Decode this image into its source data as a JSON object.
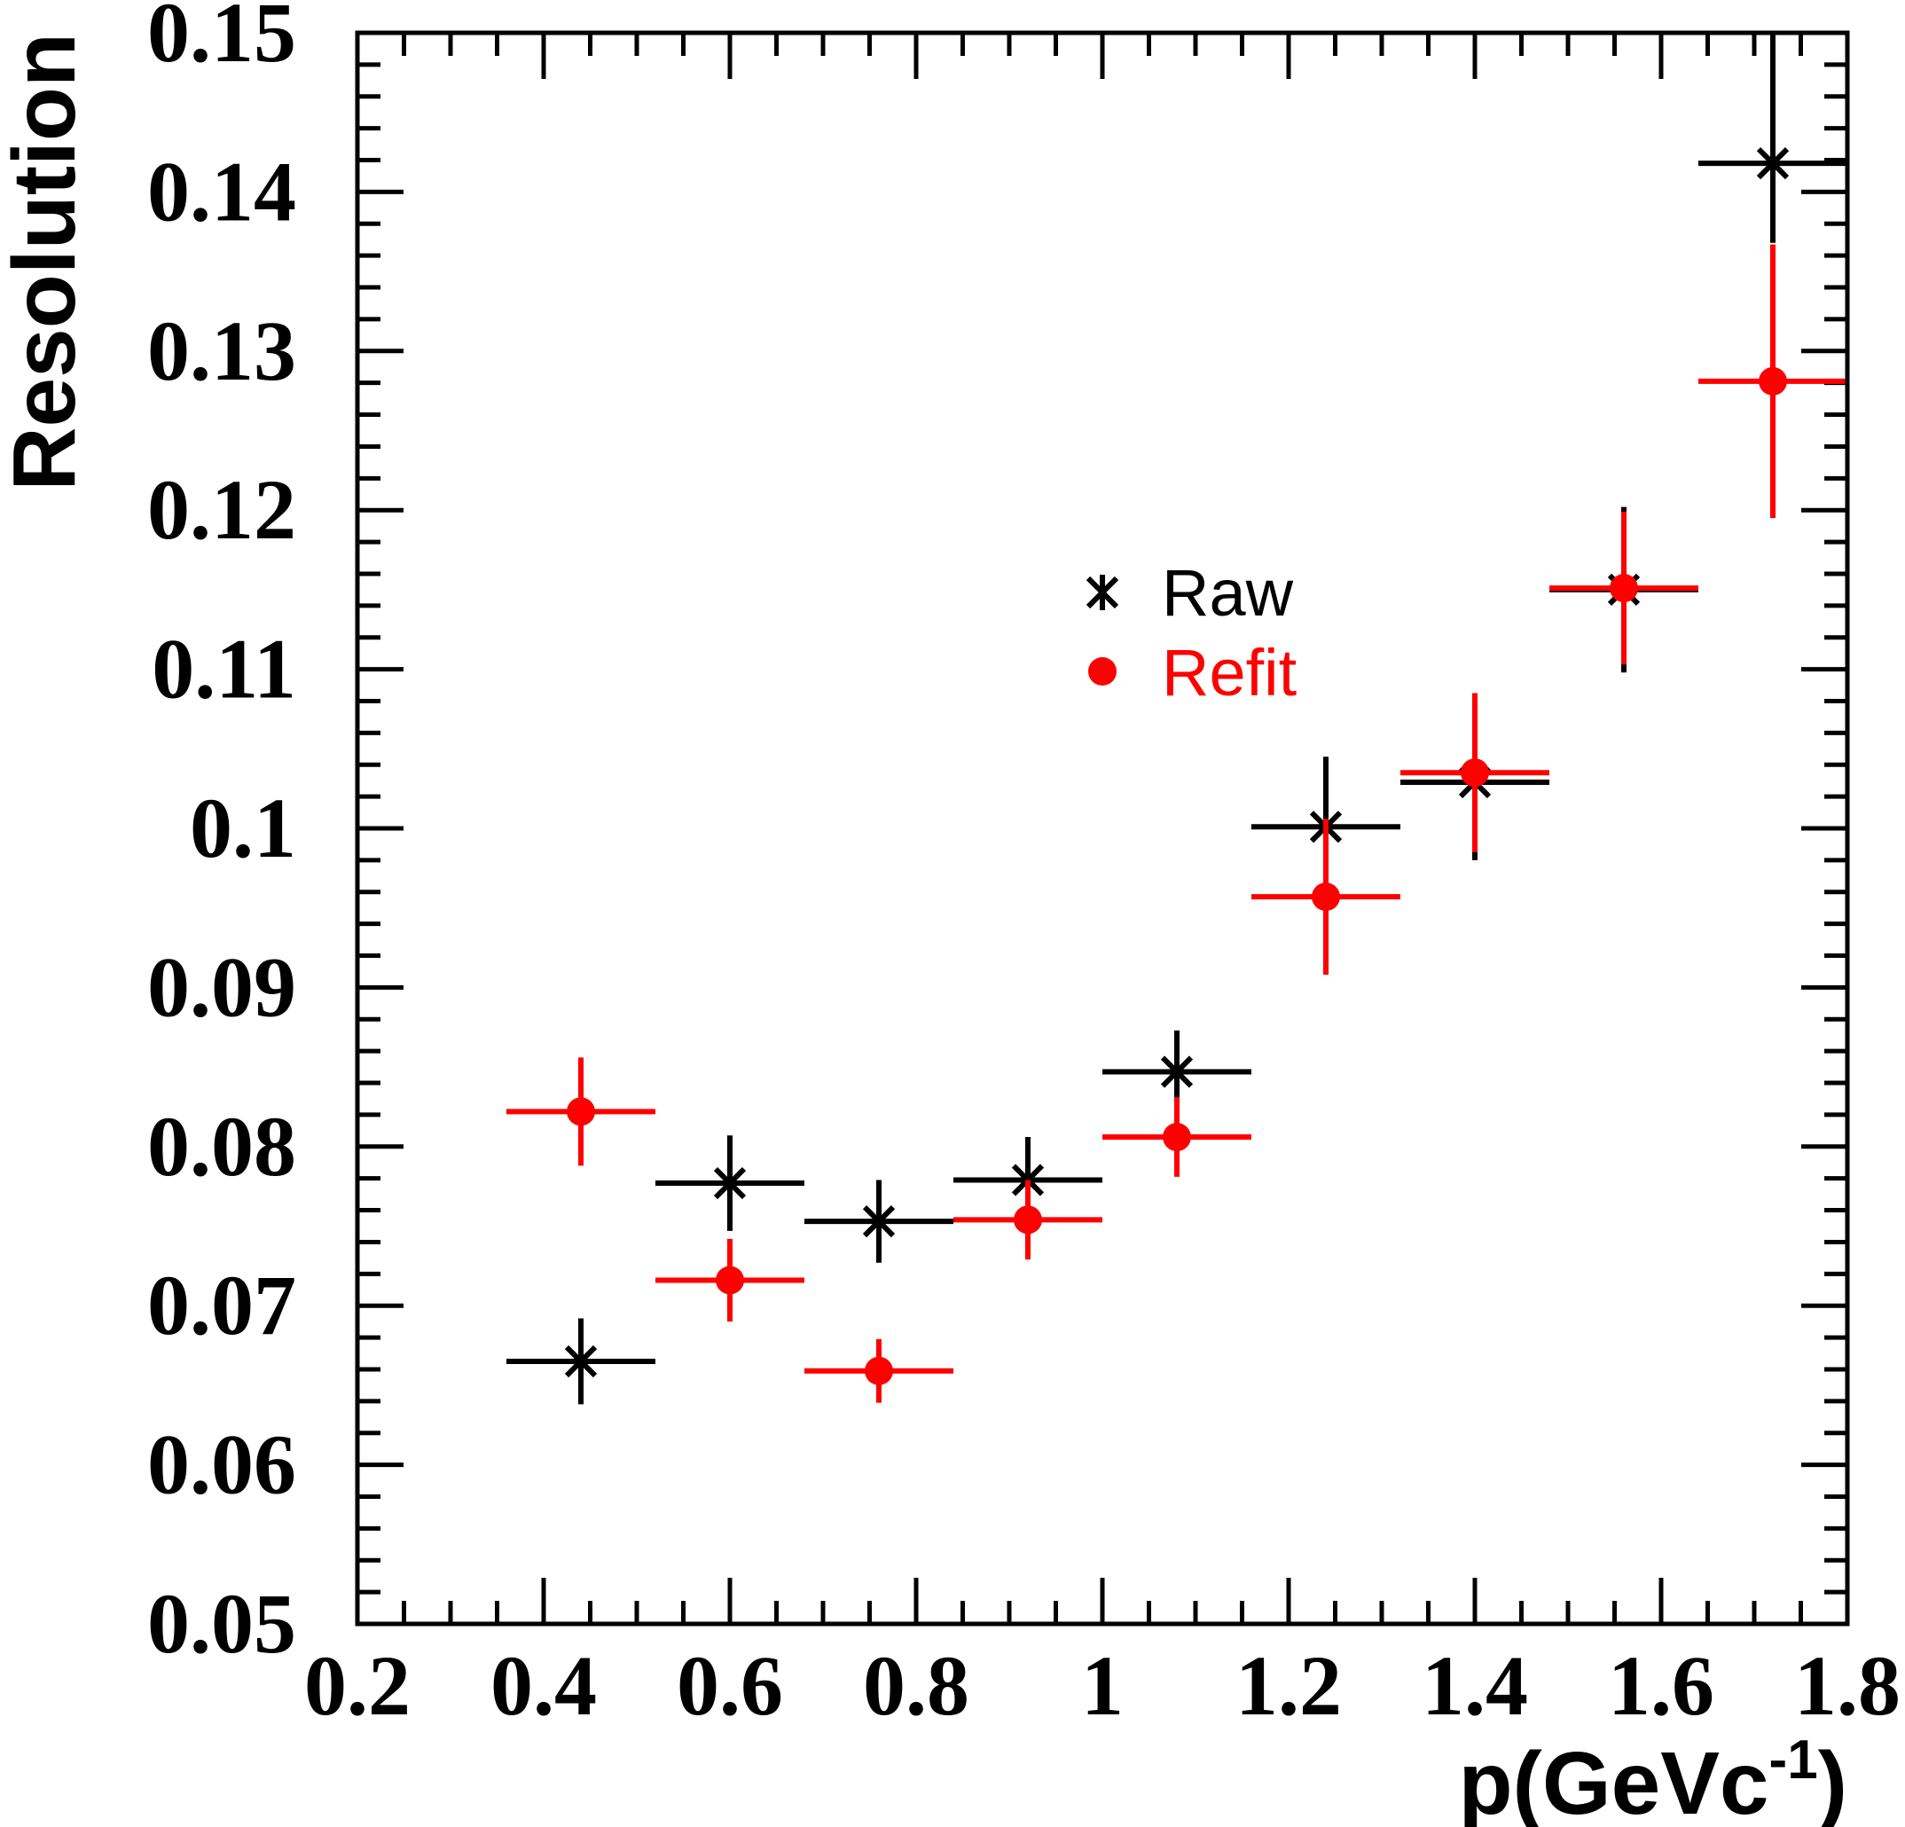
{
  "chart_data": {
    "type": "scatter",
    "title": "",
    "xlabel": "p(GeVc",
    "xlabel_superscript": "-1",
    "xlabel_close": ")",
    "ylabel": "Resolution",
    "xlim": [
      0.2,
      1.8
    ],
    "ylim": [
      0.05,
      0.15
    ],
    "xticks": [
      "0.2",
      "0.4",
      "0.6",
      "0.8",
      "1",
      "1.2",
      "1.4",
      "1.6",
      "1.8"
    ],
    "yticks": [
      "0.05",
      "0.06",
      "0.07",
      "0.08",
      "0.09",
      "0.1",
      "0.11",
      "0.12",
      "0.13",
      "0.14",
      "0.15"
    ],
    "grid": false,
    "legend": "center",
    "series": [
      {
        "name": "Raw",
        "marker": "star",
        "color": "#000000",
        "points": [
          {
            "x": 0.44,
            "y": 0.0665,
            "xerr": 0.08,
            "yerr_lo": 0.0027,
            "yerr_hi": 0.0027
          },
          {
            "x": 0.6,
            "y": 0.0777,
            "xerr": 0.08,
            "yerr_lo": 0.003,
            "yerr_hi": 0.003
          },
          {
            "x": 0.76,
            "y": 0.0753,
            "xerr": 0.08,
            "yerr_lo": 0.0026,
            "yerr_hi": 0.0026
          },
          {
            "x": 0.92,
            "y": 0.0779,
            "xerr": 0.08,
            "yerr_lo": 0.0027,
            "yerr_hi": 0.0027
          },
          {
            "x": 1.08,
            "y": 0.0847,
            "xerr": 0.08,
            "yerr_lo": 0.0026,
            "yerr_hi": 0.0026
          },
          {
            "x": 1.24,
            "y": 0.1001,
            "xerr": 0.08,
            "yerr_lo": 0.0044,
            "yerr_hi": 0.0044
          },
          {
            "x": 1.4,
            "y": 0.1029,
            "xerr": 0.08,
            "yerr_lo": 0.0049,
            "yerr_hi": 0.0049
          },
          {
            "x": 1.56,
            "y": 0.115,
            "xerr": 0.08,
            "yerr_lo": 0.0052,
            "yerr_hi": 0.0052
          },
          {
            "x": 1.72,
            "y": 0.1418,
            "xerr": 0.08,
            "yerr_lo": 0.005,
            "yerr_hi": 0.0082
          }
        ]
      },
      {
        "name": "Refit",
        "marker": "circle",
        "color": "#ff0000",
        "points": [
          {
            "x": 0.44,
            "y": 0.0822,
            "xerr": 0.08,
            "yerr_lo": 0.0034,
            "yerr_hi": 0.0034
          },
          {
            "x": 0.6,
            "y": 0.0716,
            "xerr": 0.08,
            "yerr_lo": 0.0026,
            "yerr_hi": 0.0026
          },
          {
            "x": 0.76,
            "y": 0.0659,
            "xerr": 0.08,
            "yerr_lo": 0.002,
            "yerr_hi": 0.002
          },
          {
            "x": 0.92,
            "y": 0.0754,
            "xerr": 0.08,
            "yerr_lo": 0.0025,
            "yerr_hi": 0.0025
          },
          {
            "x": 1.08,
            "y": 0.0806,
            "xerr": 0.08,
            "yerr_lo": 0.0025,
            "yerr_hi": 0.0025
          },
          {
            "x": 1.24,
            "y": 0.0957,
            "xerr": 0.08,
            "yerr_lo": 0.0049,
            "yerr_hi": 0.0049
          },
          {
            "x": 1.4,
            "y": 0.1035,
            "xerr": 0.08,
            "yerr_lo": 0.005,
            "yerr_hi": 0.005
          },
          {
            "x": 1.56,
            "y": 0.1151,
            "xerr": 0.08,
            "yerr_lo": 0.0048,
            "yerr_hi": 0.0048
          },
          {
            "x": 1.72,
            "y": 0.1281,
            "xerr": 0.08,
            "yerr_lo": 0.0086,
            "yerr_hi": 0.0086
          }
        ]
      }
    ]
  }
}
